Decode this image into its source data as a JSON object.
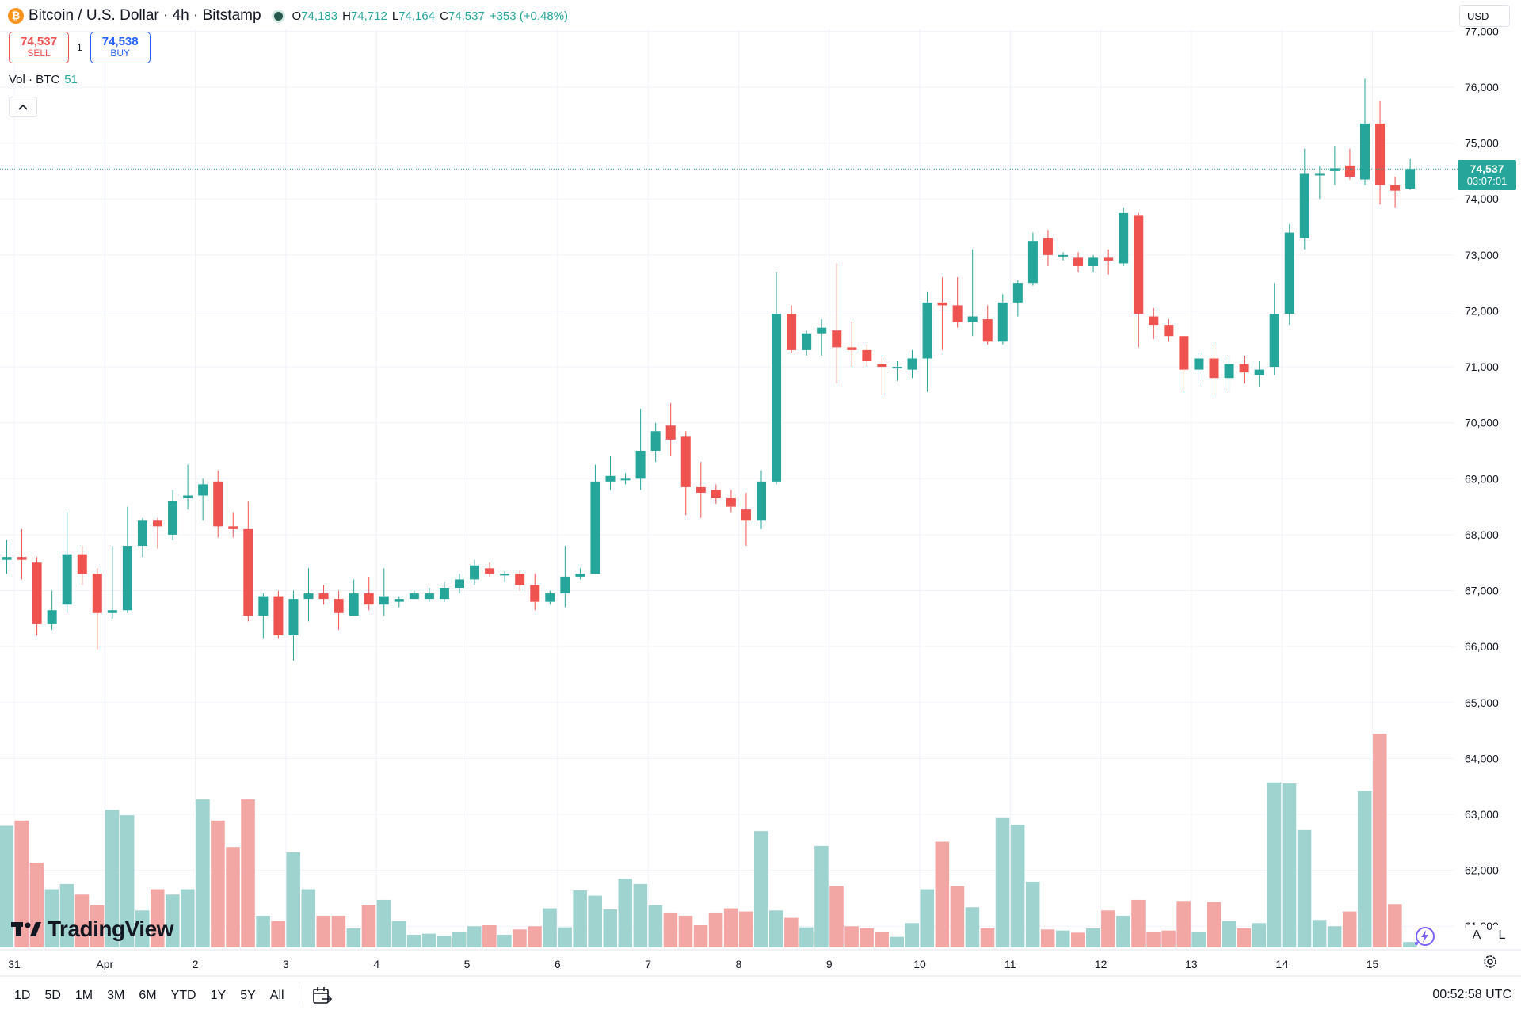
{
  "header": {
    "logo_icon": "bitcoin-icon",
    "symbol_title": "Bitcoin / U.S. Dollar · 4h · Bitstamp",
    "ohlc": {
      "open_label": "O",
      "open": "74,183",
      "high_label": "H",
      "high": "74,712",
      "low_label": "L",
      "low": "74,164",
      "close_label": "C",
      "close": "74,537",
      "change": "+353 (+0.48%)"
    }
  },
  "trade": {
    "sell_price": "74,537",
    "sell_label": "SELL",
    "spread": "1",
    "buy_price": "74,538",
    "buy_label": "BUY"
  },
  "volume_legend": {
    "label": "Vol · BTC",
    "value": "51"
  },
  "currency": "USD",
  "last_price": {
    "price": "74,537",
    "countdown": "03:07:01"
  },
  "brand": "TradingView",
  "scale_buttons": {
    "auto": "A",
    "log": "L"
  },
  "timeframes": [
    "1D",
    "5D",
    "1M",
    "3M",
    "6M",
    "YTD",
    "1Y",
    "5Y",
    "All"
  ],
  "clock": "00:52:58 UTC",
  "colors": {
    "up": "#26a69a",
    "down": "#ef5350",
    "up_vol": "#9fd3cf",
    "down_vol": "#f2a7a5"
  },
  "chart_data": {
    "type": "candlestick",
    "x_tick_labels": [
      "31",
      "Apr",
      "2",
      "3",
      "4",
      "5",
      "6",
      "7",
      "8",
      "9",
      "10",
      "11",
      "12",
      "13",
      "14",
      "15"
    ],
    "y_tick_labels": [
      "61,000",
      "62,000",
      "63,000",
      "64,000",
      "65,000",
      "66,000",
      "67,000",
      "68,000",
      "69,000",
      "70,000",
      "71,000",
      "72,000",
      "73,000",
      "74,000",
      "75,000",
      "76,000",
      "77,000"
    ],
    "ylim": [
      60200,
      77200
    ],
    "candle_period": "4h",
    "x_start": "2024-03-30 20:00",
    "last_price": 74537,
    "candles_ohlcv": [
      [
        67550,
        67900,
        67300,
        67600,
        1150
      ],
      [
        67600,
        68100,
        67200,
        67550,
        1200
      ],
      [
        67500,
        67600,
        66200,
        66400,
        800
      ],
      [
        66400,
        67000,
        66300,
        66650,
        550
      ],
      [
        66750,
        68400,
        66600,
        67650,
        600
      ],
      [
        67650,
        67800,
        67100,
        67300,
        500
      ],
      [
        67300,
        67400,
        65950,
        66600,
        400
      ],
      [
        66600,
        67800,
        66500,
        66650,
        1300
      ],
      [
        66650,
        68500,
        66600,
        67800,
        1250
      ],
      [
        67800,
        68300,
        67600,
        68250,
        350
      ],
      [
        68250,
        68300,
        67750,
        68150,
        550
      ],
      [
        68000,
        68800,
        67900,
        68600,
        500
      ],
      [
        68650,
        69250,
        68450,
        68700,
        550
      ],
      [
        68700,
        69000,
        68250,
        68900,
        1400
      ],
      [
        68950,
        69150,
        67950,
        68150,
        1200
      ],
      [
        68150,
        68400,
        67950,
        68100,
        950
      ],
      [
        68100,
        68600,
        66450,
        66550,
        1400
      ],
      [
        66550,
        66950,
        66150,
        66900,
        300
      ],
      [
        66900,
        67000,
        66150,
        66200,
        250
      ],
      [
        66200,
        67000,
        65750,
        66850,
        900
      ],
      [
        66850,
        67400,
        66450,
        66950,
        550
      ],
      [
        66950,
        67100,
        66750,
        66850,
        300
      ],
      [
        66850,
        67000,
        66300,
        66600,
        300
      ],
      [
        66550,
        67200,
        66550,
        66950,
        180
      ],
      [
        66950,
        67250,
        66650,
        66750,
        400
      ],
      [
        66750,
        67400,
        66550,
        66900,
        450
      ],
      [
        66800,
        66900,
        66700,
        66850,
        250
      ],
      [
        66850,
        67000,
        66850,
        66950,
        120
      ],
      [
        66850,
        67050,
        66800,
        66950,
        130
      ],
      [
        66850,
        67150,
        66800,
        67050,
        110
      ],
      [
        67050,
        67300,
        66950,
        67200,
        150
      ],
      [
        67200,
        67550,
        67100,
        67450,
        200
      ],
      [
        67400,
        67500,
        67250,
        67300,
        210
      ],
      [
        67300,
        67350,
        67150,
        67300,
        120
      ],
      [
        67300,
        67350,
        67000,
        67100,
        170
      ],
      [
        67100,
        67300,
        66650,
        66800,
        200
      ],
      [
        66800,
        67000,
        66750,
        66950,
        370
      ],
      [
        66950,
        67800,
        66700,
        67250,
        190
      ],
      [
        67250,
        67400,
        67200,
        67300,
        540
      ],
      [
        67300,
        69250,
        67300,
        68950,
        490
      ],
      [
        68950,
        69400,
        68800,
        69050,
        360
      ],
      [
        69000,
        69100,
        68900,
        69000,
        650
      ],
      [
        69000,
        70250,
        68800,
        69500,
        600
      ],
      [
        69500,
        70000,
        69300,
        69850,
        400
      ],
      [
        69950,
        70350,
        69400,
        69700,
        330
      ],
      [
        69750,
        69850,
        68350,
        68850,
        300
      ],
      [
        68850,
        69300,
        68300,
        68750,
        210
      ],
      [
        68800,
        68900,
        68550,
        68650,
        330
      ],
      [
        68650,
        68800,
        68400,
        68500,
        370
      ],
      [
        68450,
        68750,
        67800,
        68250,
        340
      ],
      [
        68250,
        69150,
        68100,
        68950,
        1100
      ],
      [
        68950,
        72700,
        68900,
        71950,
        350
      ],
      [
        71950,
        72100,
        71250,
        71300,
        280
      ],
      [
        71300,
        71650,
        71200,
        71600,
        190
      ],
      [
        71600,
        71850,
        71200,
        71700,
        960
      ],
      [
        71650,
        72850,
        70700,
        71350,
        580
      ],
      [
        71350,
        71800,
        71000,
        71300,
        200
      ],
      [
        71300,
        71400,
        71000,
        71100,
        180
      ],
      [
        71050,
        71200,
        70500,
        71000,
        150
      ],
      [
        71000,
        71100,
        70750,
        71000,
        100
      ],
      [
        70950,
        71300,
        70800,
        71150,
        230
      ],
      [
        71150,
        72350,
        70550,
        72150,
        550
      ],
      [
        72150,
        72600,
        71300,
        72100,
        1000
      ],
      [
        72100,
        72600,
        71700,
        71800,
        580
      ],
      [
        71800,
        73100,
        71550,
        71900,
        380
      ],
      [
        71850,
        72100,
        71400,
        71450,
        180
      ],
      [
        71450,
        72300,
        71400,
        72150,
        1230
      ],
      [
        72150,
        72550,
        71900,
        72500,
        1160
      ],
      [
        72500,
        73400,
        72450,
        73250,
        620
      ],
      [
        73300,
        73450,
        72800,
        73000,
        170
      ],
      [
        73000,
        73050,
        72900,
        73000,
        160
      ],
      [
        72950,
        73050,
        72700,
        72800,
        140
      ],
      [
        72800,
        73000,
        72700,
        72950,
        180
      ],
      [
        72950,
        73100,
        72650,
        72900,
        350
      ],
      [
        72850,
        73850,
        72800,
        73750,
        300
      ],
      [
        73700,
        73750,
        71350,
        71950,
        450
      ],
      [
        71900,
        72050,
        71500,
        71750,
        150
      ],
      [
        71750,
        71850,
        71450,
        71550,
        160
      ],
      [
        71550,
        71550,
        70550,
        70950,
        440
      ],
      [
        70950,
        71250,
        70700,
        71150,
        150
      ],
      [
        71150,
        71400,
        70500,
        70800,
        430
      ],
      [
        70800,
        71200,
        70550,
        71050,
        250
      ],
      [
        71050,
        71200,
        70700,
        70900,
        180
      ],
      [
        70850,
        71100,
        70650,
        70950,
        230
      ],
      [
        71000,
        72500,
        70850,
        71950,
        1560
      ],
      [
        71950,
        73550,
        71750,
        73400,
        1550
      ],
      [
        73300,
        74900,
        73100,
        74450,
        1110
      ],
      [
        74450,
        74600,
        74000,
        74450,
        260
      ],
      [
        74500,
        74950,
        74250,
        74550,
        200
      ],
      [
        74600,
        74900,
        74350,
        74400,
        340
      ],
      [
        74350,
        76150,
        74250,
        75350,
        1480
      ],
      [
        75350,
        75750,
        73900,
        74250,
        2020
      ],
      [
        74250,
        74400,
        73850,
        74150,
        410
      ],
      [
        74183,
        74712,
        74164,
        74537,
        51
      ]
    ]
  }
}
